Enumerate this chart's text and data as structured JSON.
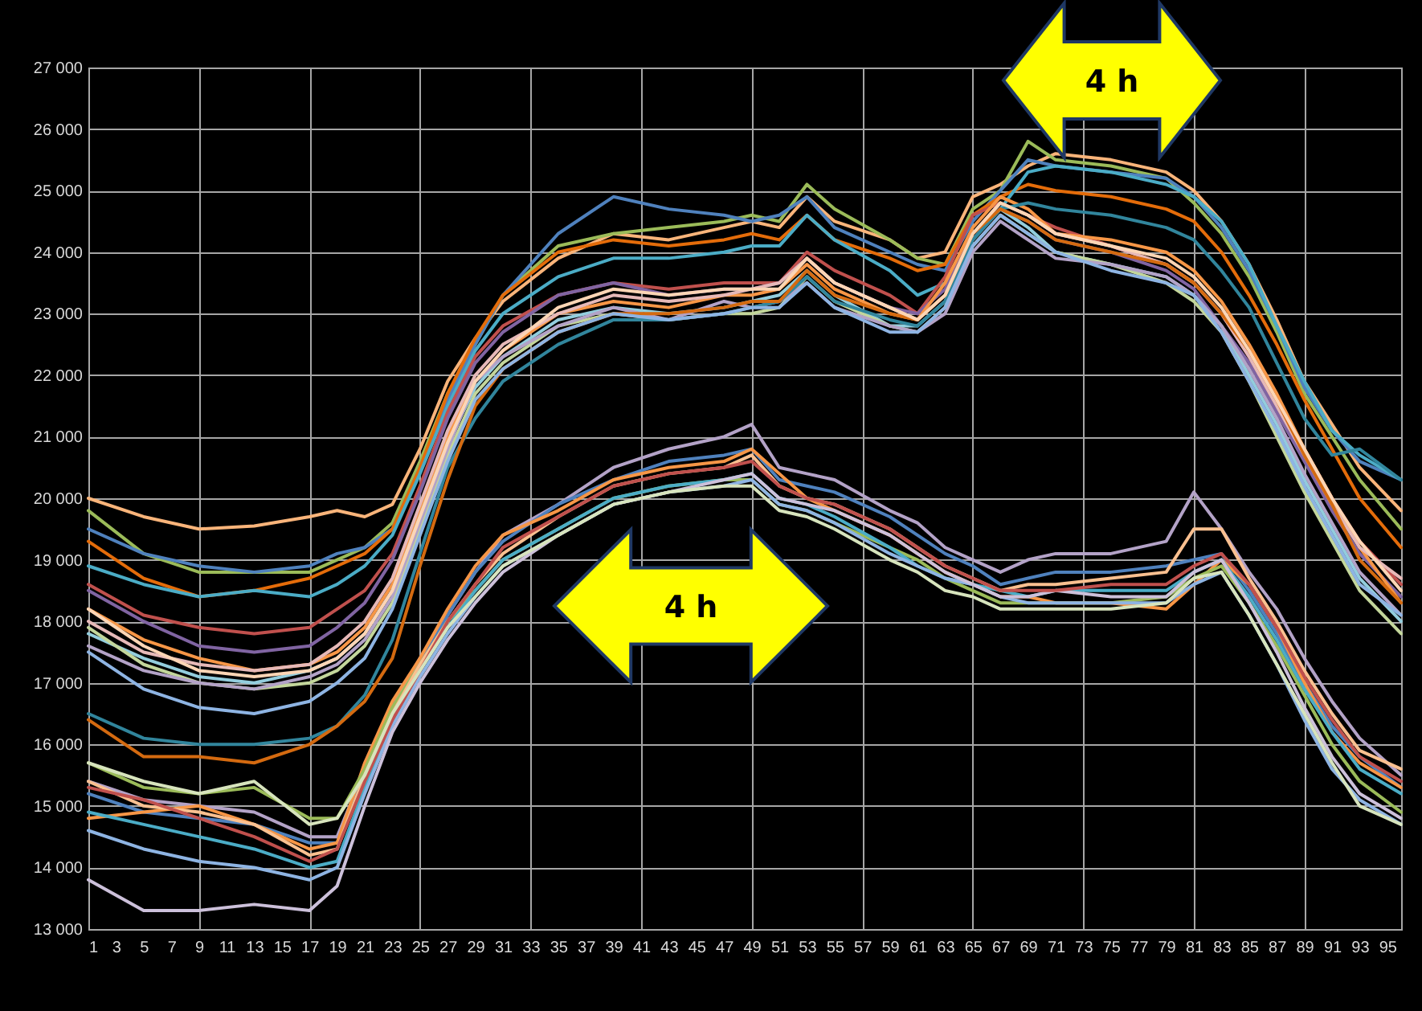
{
  "chart_data": {
    "type": "line",
    "x": [
      1,
      5,
      9,
      13,
      17,
      19,
      21,
      23,
      25,
      27,
      29,
      31,
      35,
      39,
      43,
      47,
      49,
      51,
      53,
      55,
      59,
      61,
      63,
      65,
      67,
      69,
      71,
      75,
      79,
      81,
      83,
      85,
      87,
      89,
      91,
      93,
      96
    ],
    "xlim": [
      1,
      96
    ],
    "xticks": [
      1,
      3,
      5,
      7,
      9,
      11,
      13,
      15,
      17,
      19,
      21,
      23,
      25,
      27,
      29,
      31,
      33,
      35,
      37,
      39,
      41,
      43,
      45,
      47,
      49,
      51,
      53,
      55,
      57,
      59,
      61,
      63,
      65,
      67,
      69,
      71,
      73,
      75,
      77,
      79,
      81,
      83,
      85,
      87,
      89,
      91,
      93,
      95
    ],
    "ylim": [
      13000,
      27000
    ],
    "yticks": [
      {
        "value": 13000,
        "label": "13 000"
      },
      {
        "value": 14000,
        "label": "14 000"
      },
      {
        "value": 15000,
        "label": "15 000"
      },
      {
        "value": 16000,
        "label": "16 000"
      },
      {
        "value": 17000,
        "label": "17 000"
      },
      {
        "value": 18000,
        "label": "18 000"
      },
      {
        "value": 19000,
        "label": "19 000"
      },
      {
        "value": 20000,
        "label": "20 000"
      },
      {
        "value": 21000,
        "label": "21 000"
      },
      {
        "value": 22000,
        "label": "22 000"
      },
      {
        "value": 23000,
        "label": "23 000"
      },
      {
        "value": 24000,
        "label": "24 000"
      },
      {
        "value": 25000,
        "label": "25 000"
      },
      {
        "value": 26000,
        "label": "26 000"
      },
      {
        "value": 27000,
        "label": "27 000"
      }
    ],
    "grid": true,
    "marker": "none",
    "line_style": "solid",
    "annotations": [
      "4 h",
      "4 h"
    ],
    "series": [
      {
        "color": "#f9b47a",
        "values": [
          20000,
          19700,
          19500,
          19550,
          19700,
          19800,
          19700,
          19900,
          20800,
          21900,
          22600,
          23200,
          23900,
          24300,
          24200,
          24400,
          24500,
          24400,
          24900,
          24500,
          24200,
          23900,
          24000,
          24900,
          25100,
          25400,
          25600,
          25500,
          25300,
          25000,
          24500,
          23800,
          22900,
          21900,
          21200,
          20500,
          19800
        ]
      },
      {
        "color": "#9bbb59",
        "values": [
          19800,
          19100,
          18800,
          18800,
          18800,
          19000,
          19200,
          19600,
          20600,
          21700,
          22500,
          23300,
          24100,
          24300,
          24400,
          24500,
          24600,
          24500,
          25100,
          24700,
          24200,
          23900,
          23800,
          24700,
          25000,
          25800,
          25500,
          25400,
          25200,
          24800,
          24300,
          23600,
          22700,
          21700,
          21000,
          20300,
          19500
        ]
      },
      {
        "color": "#4f81bd",
        "values": [
          19500,
          19100,
          18900,
          18800,
          18900,
          19100,
          19200,
          19500,
          20500,
          21600,
          22500,
          23300,
          24300,
          24900,
          24700,
          24600,
          24500,
          24600,
          24900,
          24400,
          24000,
          23800,
          23700,
          24500,
          25000,
          25500,
          25400,
          25300,
          25200,
          24900,
          24400,
          23700,
          22800,
          21800,
          21100,
          20600,
          20300
        ]
      },
      {
        "color": "#e46c0a",
        "values": [
          19300,
          18700,
          18400,
          18500,
          18700,
          18900,
          19100,
          19500,
          20500,
          21700,
          22600,
          23300,
          24000,
          24200,
          24100,
          24200,
          24300,
          24200,
          24600,
          24200,
          23900,
          23700,
          23800,
          24600,
          24900,
          25100,
          25000,
          24900,
          24700,
          24500,
          24000,
          23300,
          22500,
          21600,
          20800,
          20000,
          19200
        ]
      },
      {
        "color": "#4bacc6",
        "values": [
          18900,
          18600,
          18400,
          18500,
          18400,
          18600,
          18900,
          19400,
          20400,
          21500,
          22400,
          23000,
          23600,
          23900,
          23900,
          24000,
          24100,
          24100,
          24600,
          24200,
          23700,
          23300,
          23500,
          24300,
          24700,
          25300,
          25400,
          25300,
          25100,
          24900,
          24500,
          23800,
          22800,
          21900,
          21100,
          20700,
          20300
        ]
      },
      {
        "color": "#c0504d",
        "values": [
          18600,
          18100,
          17900,
          17800,
          17900,
          18200,
          18500,
          19100,
          20200,
          21400,
          22300,
          22800,
          23300,
          23500,
          23400,
          23500,
          23500,
          23500,
          24000,
          23700,
          23300,
          23000,
          23600,
          24600,
          24800,
          24600,
          24400,
          24100,
          23800,
          23500,
          23000,
          22300,
          21500,
          20800,
          20000,
          19300,
          18600
        ]
      },
      {
        "color": "#8064a2",
        "values": [
          18500,
          18000,
          17600,
          17500,
          17600,
          17900,
          18300,
          19000,
          20100,
          21300,
          22200,
          22700,
          23300,
          23500,
          23300,
          23400,
          23400,
          23500,
          23900,
          23500,
          23100,
          23000,
          23400,
          24300,
          24700,
          24500,
          24200,
          24000,
          23700,
          23400,
          22800,
          22200,
          21400,
          20600,
          19800,
          19100,
          18400
        ]
      },
      {
        "color": "#f79646",
        "values": [
          18200,
          17700,
          17400,
          17200,
          17300,
          17500,
          17900,
          18600,
          19800,
          21000,
          21900,
          22400,
          23000,
          23200,
          23100,
          23300,
          23300,
          23400,
          23800,
          23400,
          23000,
          22900,
          23500,
          24400,
          24900,
          24700,
          24300,
          24200,
          24000,
          23700,
          23200,
          22500,
          21700,
          20800,
          20000,
          19200,
          18300
        ]
      },
      {
        "color": "#93cddd",
        "values": [
          17800,
          17400,
          17100,
          17000,
          17200,
          17400,
          17800,
          18500,
          19700,
          20900,
          21800,
          22300,
          22900,
          23100,
          23000,
          23100,
          23200,
          23300,
          23700,
          23300,
          22800,
          22800,
          23200,
          24200,
          24700,
          24400,
          24000,
          23800,
          23600,
          23300,
          22800,
          22000,
          21200,
          20300,
          19500,
          18700,
          18000
        ]
      },
      {
        "color": "#c3d69b",
        "values": [
          17900,
          17300,
          17000,
          16900,
          17000,
          17200,
          17600,
          18300,
          19500,
          20700,
          21700,
          22200,
          22800,
          23000,
          22900,
          23000,
          23000,
          23100,
          23600,
          23200,
          22800,
          22700,
          23100,
          24100,
          24600,
          24300,
          24000,
          23800,
          23500,
          23200,
          22700,
          21900,
          21000,
          20100,
          19300,
          18500,
          17800
        ]
      },
      {
        "color": "#b3a2c7",
        "values": [
          17600,
          17200,
          17000,
          16900,
          17100,
          17300,
          17700,
          18400,
          19600,
          20800,
          21900,
          22300,
          22800,
          23100,
          22900,
          23200,
          23100,
          23200,
          23500,
          23100,
          22800,
          22700,
          23000,
          24000,
          24500,
          24200,
          23900,
          23800,
          23600,
          23300,
          22800,
          22100,
          21300,
          20400,
          19600,
          18800,
          18100
        ]
      },
      {
        "color": "#e6b9b8",
        "values": [
          18000,
          17500,
          17300,
          17200,
          17300,
          17600,
          18000,
          18700,
          19900,
          21100,
          22000,
          22500,
          23000,
          23300,
          23200,
          23300,
          23400,
          23500,
          23900,
          23500,
          23100,
          22900,
          23300,
          24300,
          24800,
          24600,
          24300,
          24100,
          23800,
          23500,
          23000,
          22300,
          21500,
          20700,
          19900,
          19200,
          18700
        ]
      },
      {
        "color": "#31859c",
        "values": [
          16500,
          16100,
          16000,
          16000,
          16100,
          16300,
          16800,
          17700,
          19100,
          20500,
          21300,
          21900,
          22500,
          22900,
          22900,
          23000,
          23100,
          23200,
          23600,
          23200,
          22900,
          22800,
          23200,
          24200,
          24700,
          24800,
          24700,
          24600,
          24400,
          24200,
          23700,
          23100,
          22200,
          21300,
          20700,
          20800,
          20300
        ]
      },
      {
        "color": "#d46a10",
        "values": [
          16400,
          15800,
          15800,
          15700,
          16000,
          16300,
          16700,
          17400,
          18900,
          20300,
          21500,
          22100,
          22700,
          23000,
          23000,
          23100,
          23200,
          23200,
          23700,
          23300,
          23000,
          22900,
          23300,
          24300,
          24700,
          24500,
          24200,
          24000,
          23800,
          23500,
          23000,
          22400,
          21600,
          20700,
          19900,
          19000,
          18300
        ]
      },
      {
        "color": "#8eb4e3",
        "values": [
          17500,
          16900,
          16600,
          16500,
          16700,
          17000,
          17400,
          18200,
          19400,
          20600,
          21600,
          22100,
          22700,
          23000,
          22900,
          23000,
          23100,
          23100,
          23500,
          23100,
          22700,
          22700,
          23100,
          24100,
          24600,
          24300,
          24000,
          23700,
          23500,
          23300,
          22700,
          21900,
          21100,
          20200,
          19400,
          18600,
          18100
        ]
      },
      {
        "color": "#fcd5b5",
        "values": [
          18200,
          17600,
          17200,
          17100,
          17200,
          17400,
          17800,
          18500,
          19700,
          20900,
          21900,
          22400,
          23100,
          23400,
          23300,
          23400,
          23400,
          23400,
          23900,
          23500,
          23100,
          22900,
          23300,
          24300,
          24800,
          24600,
          24300,
          24100,
          23900,
          23600,
          23100,
          22400,
          21600,
          20800,
          20000,
          19300,
          18500
        ]
      },
      {
        "color": "#b3a2c7",
        "values": [
          15400,
          15100,
          15000,
          14900,
          14500,
          14500,
          15600,
          16600,
          17400,
          18100,
          18800,
          19400,
          19900,
          20500,
          20800,
          21000,
          21200,
          20500,
          20400,
          20300,
          19800,
          19600,
          19200,
          19000,
          18800,
          19000,
          19100,
          19100,
          19300,
          20100,
          19500,
          18800,
          18200,
          17400,
          16700,
          16100,
          15500
        ]
      },
      {
        "color": "#4f81bd",
        "values": [
          15200,
          14900,
          14800,
          14700,
          14400,
          14400,
          15500,
          16500,
          17300,
          18100,
          18800,
          19300,
          19900,
          20300,
          20600,
          20700,
          20800,
          20300,
          20200,
          20100,
          19700,
          19400,
          19100,
          18900,
          18600,
          18700,
          18800,
          18800,
          18900,
          19000,
          19100,
          18500,
          17800,
          17000,
          16300,
          15800,
          15300
        ]
      },
      {
        "color": "#f79646",
        "values": [
          14800,
          14900,
          15000,
          14700,
          14300,
          14400,
          15700,
          16700,
          17400,
          18200,
          18900,
          19400,
          19800,
          20300,
          20500,
          20600,
          20800,
          20400,
          20000,
          19800,
          19400,
          19100,
          18800,
          18600,
          18400,
          18400,
          18300,
          18300,
          18200,
          18600,
          19000,
          18600,
          17900,
          17000,
          16200,
          15700,
          15300
        ]
      },
      {
        "color": "#9bbb59",
        "values": [
          15700,
          15300,
          15200,
          15300,
          14800,
          14800,
          15600,
          16600,
          17300,
          18000,
          18500,
          19000,
          19500,
          20000,
          20200,
          20300,
          20300,
          19900,
          19800,
          19600,
          19200,
          19000,
          18700,
          18500,
          18300,
          18300,
          18300,
          18300,
          18400,
          18700,
          18900,
          18300,
          17600,
          16800,
          16000,
          15400,
          14900
        ]
      },
      {
        "color": "#4bacc6",
        "values": [
          14900,
          14700,
          14500,
          14300,
          14000,
          14100,
          15300,
          16400,
          17200,
          17900,
          18500,
          19000,
          19500,
          20000,
          20200,
          20300,
          20400,
          20000,
          19900,
          19700,
          19200,
          18900,
          18700,
          18600,
          18500,
          18400,
          18500,
          18500,
          18500,
          18800,
          19000,
          18400,
          17700,
          16900,
          16200,
          15600,
          15200
        ]
      },
      {
        "color": "#fac090",
        "values": [
          15400,
          15000,
          14900,
          14700,
          14200,
          14300,
          15500,
          16500,
          17300,
          18000,
          18600,
          19100,
          19700,
          20200,
          20400,
          20500,
          20700,
          20200,
          20000,
          19900,
          19500,
          19200,
          18900,
          18700,
          18500,
          18600,
          18600,
          18700,
          18800,
          19500,
          19500,
          18700,
          18000,
          17200,
          16500,
          15900,
          15600
        ]
      },
      {
        "color": "#8eb4e3",
        "values": [
          14600,
          14300,
          14100,
          14000,
          13800,
          14000,
          15200,
          16300,
          17100,
          17800,
          18400,
          18900,
          19400,
          19900,
          20100,
          20200,
          20300,
          19900,
          19800,
          19600,
          19100,
          18900,
          18700,
          18600,
          18400,
          18300,
          18300,
          18300,
          18300,
          18600,
          18800,
          18100,
          17300,
          16400,
          15600,
          15100,
          14700
        ]
      },
      {
        "color": "#ccc0da",
        "values": [
          13800,
          13300,
          13300,
          13400,
          13300,
          13700,
          15000,
          16200,
          17000,
          17700,
          18300,
          18800,
          19400,
          19900,
          20100,
          20300,
          20400,
          20000,
          19900,
          19800,
          19400,
          19100,
          18800,
          18600,
          18400,
          18400,
          18500,
          18400,
          18400,
          18800,
          19000,
          18300,
          17500,
          16600,
          15800,
          15200,
          14800
        ]
      },
      {
        "color": "#c0504d",
        "values": [
          15300,
          15100,
          14800,
          14500,
          14100,
          14300,
          15400,
          16400,
          17200,
          18000,
          18600,
          19200,
          19700,
          20200,
          20400,
          20500,
          20600,
          20200,
          20000,
          19900,
          19500,
          19200,
          18900,
          18700,
          18500,
          18500,
          18500,
          18600,
          18600,
          18900,
          19100,
          18600,
          17900,
          17100,
          16400,
          15800,
          15400
        ]
      },
      {
        "color": "#d7e4bd",
        "values": [
          15700,
          15400,
          15200,
          15400,
          14700,
          14800,
          15500,
          16500,
          17200,
          17900,
          18400,
          18900,
          19400,
          19900,
          20100,
          20200,
          20200,
          19800,
          19700,
          19500,
          19000,
          18800,
          18500,
          18400,
          18200,
          18200,
          18200,
          18200,
          18300,
          18700,
          18800,
          18100,
          17300,
          16500,
          15700,
          15000,
          14700
        ]
      }
    ]
  }
}
